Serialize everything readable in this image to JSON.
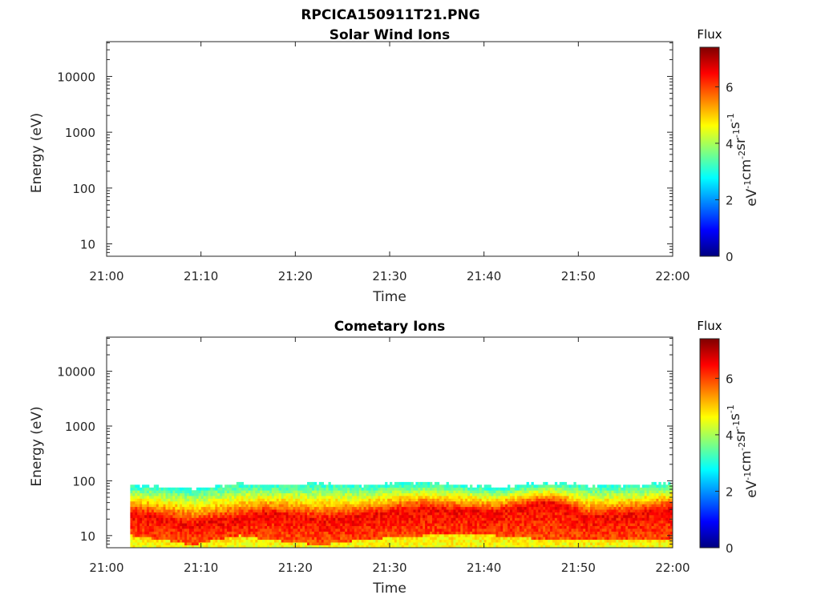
{
  "figure_title": "RPCICA150911T21.PNG",
  "chart_data": [
    {
      "type": "heatmap",
      "title": "Solar Wind Ions",
      "xlabel": "Time",
      "ylabel": "Energy (eV)",
      "x_ticks": [
        "21:00",
        "21:10",
        "21:20",
        "21:30",
        "21:40",
        "21:50",
        "22:00"
      ],
      "x_range_minutes": [
        0,
        60
      ],
      "y_scale": "log",
      "y_ticks": [
        10,
        100,
        1000,
        10000
      ],
      "y_tick_labels": [
        "10",
        "100",
        "1000",
        "10000"
      ],
      "ylim": [
        6,
        42000
      ],
      "colorbar": {
        "title": "Flux",
        "label": "eV-1cm-2sr-1s-1",
        "ticks": [
          0,
          2,
          4,
          6
        ],
        "range": [
          0,
          7.4
        ],
        "colormap": "jet"
      },
      "grid": false,
      "bands": []
    },
    {
      "type": "heatmap",
      "title": "Cometary Ions",
      "xlabel": "Time",
      "ylabel": "Energy (eV)",
      "x_ticks": [
        "21:00",
        "21:10",
        "21:20",
        "21:30",
        "21:40",
        "21:50",
        "22:00"
      ],
      "x_range_minutes": [
        0,
        60
      ],
      "y_scale": "log",
      "y_ticks": [
        10,
        100,
        1000,
        10000
      ],
      "y_tick_labels": [
        "10",
        "100",
        "1000",
        "10000"
      ],
      "ylim": [
        6,
        42000
      ],
      "colorbar": {
        "title": "Flux",
        "label": "eV-1cm-2sr-1s-1",
        "ticks": [
          0,
          2,
          4,
          6
        ],
        "range": [
          0,
          7.4
        ],
        "colormap": "jet"
      },
      "grid": false,
      "data_start_minute": 2.5,
      "bands": [
        {
          "t": [
            2.5,
            9.0,
            14.0,
            17.0,
            22.5,
            27.0,
            33.5,
            41.0,
            47.0,
            51.0,
            56.0,
            60.0
          ],
          "e_low": [
            12,
            8,
            12,
            10,
            8,
            10,
            12,
            12,
            10,
            10,
            10,
            10
          ],
          "e_peak": [
            25,
            15,
            20,
            25,
            18,
            22,
            30,
            25,
            40,
            20,
            25,
            30
          ],
          "e_high": [
            70,
            60,
            75,
            70,
            75,
            70,
            80,
            65,
            80,
            70,
            70,
            80
          ],
          "flux": 6.5
        }
      ]
    }
  ]
}
